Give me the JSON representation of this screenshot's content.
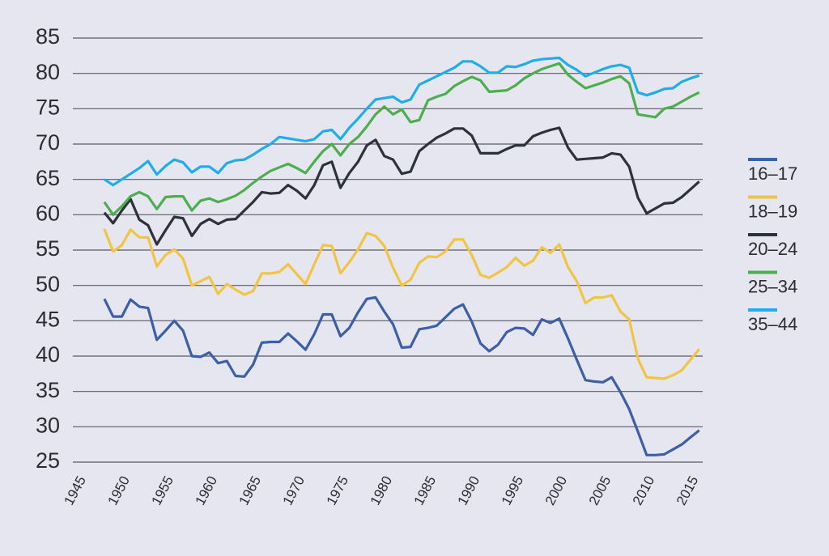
{
  "chart_data": {
    "type": "line",
    "x": [
      1948,
      1949,
      1950,
      1951,
      1952,
      1953,
      1954,
      1955,
      1956,
      1957,
      1958,
      1959,
      1960,
      1961,
      1962,
      1963,
      1964,
      1965,
      1966,
      1967,
      1968,
      1969,
      1970,
      1971,
      1972,
      1973,
      1974,
      1975,
      1976,
      1977,
      1978,
      1979,
      1980,
      1981,
      1982,
      1983,
      1984,
      1985,
      1986,
      1987,
      1988,
      1989,
      1990,
      1991,
      1992,
      1993,
      1994,
      1995,
      1996,
      1997,
      1998,
      1999,
      2000,
      2001,
      2002,
      2003,
      2004,
      2005,
      2006,
      2007,
      2008,
      2009,
      2010,
      2011,
      2012,
      2013,
      2014,
      2015,
      2016
    ],
    "series": [
      {
        "name": "16–17",
        "color": "#3d5fa6",
        "values": [
          48.1,
          45.6,
          45.6,
          48.0,
          47.0,
          46.8,
          42.3,
          43.6,
          45.0,
          43.6,
          40.0,
          39.9,
          40.5,
          39.0,
          39.3,
          37.2,
          37.1,
          38.8,
          41.9,
          42.0,
          42.0,
          43.2,
          42.1,
          40.9,
          43.1,
          45.9,
          45.9,
          42.8,
          44.0,
          46.2,
          48.1,
          48.3,
          46.3,
          44.5,
          41.2,
          41.3,
          43.8,
          44.0,
          44.3,
          45.5,
          46.7,
          47.3,
          44.9,
          41.8,
          40.7,
          41.6,
          43.4,
          44.0,
          43.9,
          43.0,
          45.2,
          44.7,
          45.3,
          42.5,
          39.5,
          36.6,
          36.4,
          36.3,
          37.0,
          34.9,
          32.5,
          29.3,
          26.0,
          26.0,
          26.1,
          26.8,
          27.5,
          28.5,
          29.5
        ]
      },
      {
        "name": "18–19",
        "color": "#f2c444",
        "values": [
          58.0,
          54.8,
          55.7,
          57.9,
          56.8,
          56.8,
          52.7,
          54.3,
          55.1,
          53.8,
          50.0,
          50.6,
          51.2,
          48.8,
          50.2,
          49.4,
          48.7,
          49.2,
          51.7,
          51.7,
          51.9,
          53.0,
          51.6,
          50.2,
          53.0,
          55.7,
          55.6,
          51.7,
          53.3,
          55.1,
          57.4,
          57.0,
          55.6,
          52.5,
          50.0,
          50.8,
          53.2,
          54.1,
          54.0,
          54.8,
          56.5,
          56.5,
          54.3,
          51.5,
          51.1,
          51.8,
          52.6,
          53.9,
          52.8,
          53.5,
          55.4,
          54.6,
          55.8,
          52.6,
          50.6,
          47.5,
          48.3,
          48.3,
          48.6,
          46.3,
          45.2,
          39.6,
          37.0,
          36.9,
          36.8,
          37.3,
          38.0,
          39.5,
          41.0
        ]
      },
      {
        "name": "20–24",
        "color": "#2e313d",
        "values": [
          60.3,
          58.8,
          60.6,
          62.2,
          59.3,
          58.5,
          55.8,
          57.8,
          59.7,
          59.5,
          57.0,
          58.7,
          59.4,
          58.7,
          59.3,
          59.4,
          60.6,
          61.8,
          63.2,
          63.0,
          63.1,
          64.2,
          63.4,
          62.3,
          64.2,
          67.0,
          67.5,
          63.8,
          65.9,
          67.5,
          69.8,
          70.6,
          68.3,
          67.8,
          65.8,
          66.1,
          69.0,
          70.0,
          70.9,
          71.5,
          72.2,
          72.2,
          71.2,
          68.7,
          68.7,
          68.7,
          69.3,
          69.8,
          69.8,
          71.1,
          71.6,
          72.0,
          72.3,
          69.5,
          67.8,
          67.9,
          68.0,
          68.1,
          68.7,
          68.5,
          66.8,
          62.4,
          60.2,
          60.9,
          61.6,
          61.7,
          62.5,
          63.6,
          64.7
        ]
      },
      {
        "name": "25–34",
        "color": "#4dae4f",
        "values": [
          61.8,
          60.0,
          61.2,
          62.6,
          63.2,
          62.6,
          60.8,
          62.5,
          62.6,
          62.6,
          60.6,
          62.0,
          62.3,
          61.8,
          62.2,
          62.7,
          63.5,
          64.5,
          65.4,
          66.2,
          66.7,
          67.2,
          66.6,
          65.9,
          67.5,
          69.0,
          70.0,
          68.4,
          70.0,
          71.0,
          72.5,
          74.2,
          75.3,
          74.2,
          74.9,
          73.1,
          73.4,
          76.2,
          76.7,
          77.1,
          78.2,
          78.9,
          79.5,
          79.0,
          77.4,
          77.5,
          77.6,
          78.3,
          79.3,
          80.0,
          80.6,
          81.0,
          81.4,
          79.8,
          78.8,
          77.9,
          78.3,
          78.7,
          79.2,
          79.6,
          78.6,
          74.2,
          74.0,
          73.8,
          75.0,
          75.3,
          76.0,
          76.7,
          77.3
        ]
      },
      {
        "name": "35–44",
        "color": "#1eaee8",
        "values": [
          65.0,
          64.2,
          65.0,
          65.8,
          66.6,
          67.6,
          65.7,
          66.9,
          67.8,
          67.4,
          66.0,
          66.8,
          66.8,
          65.9,
          67.3,
          67.7,
          67.8,
          68.5,
          69.3,
          70.0,
          71.0,
          70.8,
          70.6,
          70.4,
          70.7,
          71.8,
          72.0,
          70.7,
          72.3,
          73.6,
          75.0,
          76.3,
          76.5,
          76.7,
          75.9,
          76.3,
          78.4,
          79.0,
          79.6,
          80.2,
          80.8,
          81.7,
          81.7,
          81.0,
          80.1,
          80.1,
          81.0,
          80.9,
          81.3,
          81.8,
          82.0,
          82.1,
          82.2,
          81.2,
          80.5,
          79.6,
          80.1,
          80.6,
          81.0,
          81.2,
          80.8,
          77.3,
          76.9,
          77.3,
          77.8,
          77.9,
          78.8,
          79.3,
          79.7
        ]
      }
    ],
    "xlim": [
      1944.4,
      2016.4
    ],
    "xticks": [
      1945,
      1950,
      1955,
      1960,
      1965,
      1970,
      1975,
      1980,
      1985,
      1990,
      1995,
      2000,
      2005,
      2010,
      2015
    ],
    "ylim": [
      25,
      85
    ],
    "yticks": [
      25,
      30,
      35,
      40,
      45,
      50,
      55,
      60,
      65,
      70,
      75,
      80,
      85
    ],
    "grid": true,
    "legend": "right"
  }
}
